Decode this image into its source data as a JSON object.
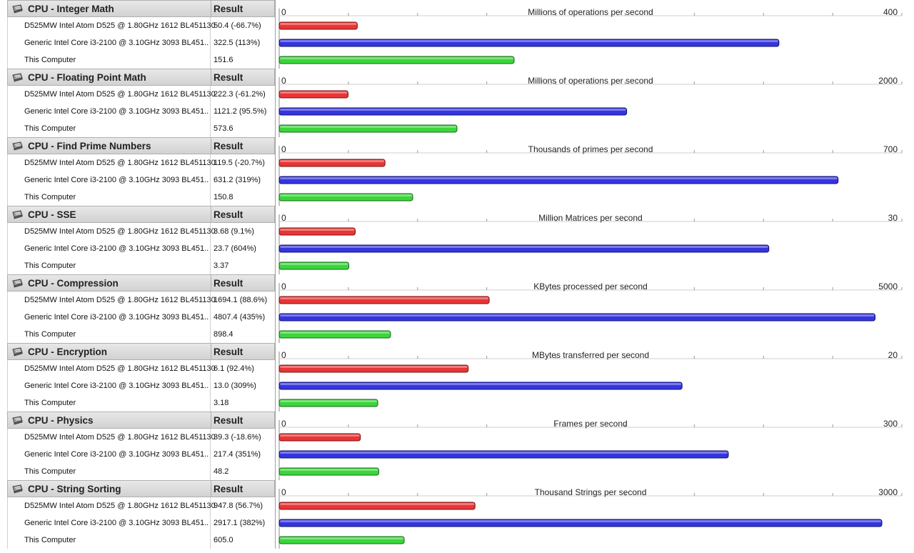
{
  "result_header": "Result",
  "colors": {
    "bar_series": [
      "#e83535",
      "#3535e0",
      "#3ad63a"
    ],
    "bar_border": [
      "#7a1010",
      "#10106a",
      "#166616"
    ],
    "header_bg": "#dadada"
  },
  "sections": [
    {
      "title": "CPU - Integer Math",
      "unit": "Millions of operations per second",
      "axis_min": "0",
      "axis_max_label": "400",
      "axis_max": 400,
      "rows": [
        {
          "name": "D525MW Intel Atom D525 @ 1.80GHz 1612 BL451130",
          "result": "50.4 (-66.7%)",
          "value": 50.4
        },
        {
          "name": "Generic Intel Core i3-2100 @ 3.10GHz 3093 BL451..",
          "result": "322.5 (113%)",
          "value": 322.5
        },
        {
          "name": "This Computer",
          "result": "151.6",
          "value": 151.6
        }
      ]
    },
    {
      "title": "CPU - Floating Point Math",
      "unit": "Millions of operations per second",
      "axis_min": "0",
      "axis_max_label": "2000",
      "axis_max": 2000,
      "rows": [
        {
          "name": "D525MW Intel Atom D525 @ 1.80GHz 1612 BL451130",
          "result": "222.3 (-61.2%)",
          "value": 222.3
        },
        {
          "name": "Generic Intel Core i3-2100 @ 3.10GHz 3093 BL451..",
          "result": "1121.2 (95.5%)",
          "value": 1121.2
        },
        {
          "name": "This Computer",
          "result": "573.6",
          "value": 573.6
        }
      ]
    },
    {
      "title": "CPU - Find Prime Numbers",
      "unit": "Thousands of primes per second",
      "axis_min": "0",
      "axis_max_label": "700",
      "axis_max": 700,
      "rows": [
        {
          "name": "D525MW Intel Atom D525 @ 1.80GHz 1612 BL451130",
          "result": "119.5 (-20.7%)",
          "value": 119.5
        },
        {
          "name": "Generic Intel Core i3-2100 @ 3.10GHz 3093 BL451..",
          "result": "631.2 (319%)",
          "value": 631.2
        },
        {
          "name": "This Computer",
          "result": "150.8",
          "value": 150.8
        }
      ]
    },
    {
      "title": "CPU - SSE",
      "unit": "Million Matrices per second",
      "axis_min": "0",
      "axis_max_label": "30",
      "axis_max": 30,
      "rows": [
        {
          "name": "D525MW Intel Atom D525 @ 1.80GHz 1612 BL451130",
          "result": "3.68 (9.1%)",
          "value": 3.68
        },
        {
          "name": "Generic Intel Core i3-2100 @ 3.10GHz 3093 BL451..",
          "result": "23.7 (604%)",
          "value": 23.7
        },
        {
          "name": "This Computer",
          "result": "3.37",
          "value": 3.37
        }
      ]
    },
    {
      "title": "CPU - Compression",
      "unit": "KBytes processed per second",
      "axis_min": "0",
      "axis_max_label": "5000",
      "axis_max": 5000,
      "rows": [
        {
          "name": "D525MW Intel Atom D525 @ 1.80GHz 1612 BL451130",
          "result": "1694.1 (88.6%)",
          "value": 1694.1
        },
        {
          "name": "Generic Intel Core i3-2100 @ 3.10GHz 3093 BL451..",
          "result": "4807.4 (435%)",
          "value": 4807.4
        },
        {
          "name": "This Computer",
          "result": "898.4",
          "value": 898.4
        }
      ]
    },
    {
      "title": "CPU - Encryption",
      "unit": "MBytes transferred per second",
      "axis_min": "0",
      "axis_max_label": "20",
      "axis_max": 20,
      "rows": [
        {
          "name": "D525MW Intel Atom D525 @ 1.80GHz 1612 BL451130",
          "result": "6.1 (92.4%)",
          "value": 6.1
        },
        {
          "name": "Generic Intel Core i3-2100 @ 3.10GHz 3093 BL451..",
          "result": "13.0 (309%)",
          "value": 13.0
        },
        {
          "name": "This Computer",
          "result": "3.18",
          "value": 3.18
        }
      ]
    },
    {
      "title": "CPU - Physics",
      "unit": "Frames per second",
      "axis_min": "0",
      "axis_max_label": "300",
      "axis_max": 300,
      "rows": [
        {
          "name": "D525MW Intel Atom D525 @ 1.80GHz 1612 BL451130",
          "result": "39.3 (-18.6%)",
          "value": 39.3
        },
        {
          "name": "Generic Intel Core i3-2100 @ 3.10GHz 3093 BL451..",
          "result": "217.4 (351%)",
          "value": 217.4
        },
        {
          "name": "This Computer",
          "result": "48.2",
          "value": 48.2
        }
      ]
    },
    {
      "title": "CPU - String Sorting",
      "unit": "Thousand Strings per second",
      "axis_min": "0",
      "axis_max_label": "3000",
      "axis_max": 3000,
      "rows": [
        {
          "name": "D525MW Intel Atom D525 @ 1.80GHz 1612 BL451130",
          "result": "947.8 (56.7%)",
          "value": 947.8
        },
        {
          "name": "Generic Intel Core i3-2100 @ 3.10GHz 3093 BL451..",
          "result": "2917.1 (382%)",
          "value": 2917.1
        },
        {
          "name": "This Computer",
          "result": "605.0",
          "value": 605.0
        }
      ]
    }
  ],
  "chart_data": [
    {
      "type": "bar",
      "title": "Millions of operations per second",
      "categories": [
        "D525MW Intel Atom D525 @ 1.80GHz 1612 BL451130",
        "Generic Intel Core i3-2100 @ 3.10GHz 3093 BL451..",
        "This Computer"
      ],
      "values": [
        50.4,
        322.5,
        151.6
      ],
      "xlim": [
        0,
        400
      ]
    },
    {
      "type": "bar",
      "title": "Millions of operations per second",
      "categories": [
        "D525MW Intel Atom D525 @ 1.80GHz 1612 BL451130",
        "Generic Intel Core i3-2100 @ 3.10GHz 3093 BL451..",
        "This Computer"
      ],
      "values": [
        222.3,
        1121.2,
        573.6
      ],
      "xlim": [
        0,
        2000
      ]
    },
    {
      "type": "bar",
      "title": "Thousands of primes per second",
      "categories": [
        "D525MW Intel Atom D525 @ 1.80GHz 1612 BL451130",
        "Generic Intel Core i3-2100 @ 3.10GHz 3093 BL451..",
        "This Computer"
      ],
      "values": [
        119.5,
        631.2,
        150.8
      ],
      "xlim": [
        0,
        700
      ]
    },
    {
      "type": "bar",
      "title": "Million Matrices per second",
      "categories": [
        "D525MW Intel Atom D525 @ 1.80GHz 1612 BL451130",
        "Generic Intel Core i3-2100 @ 3.10GHz 3093 BL451..",
        "This Computer"
      ],
      "values": [
        3.68,
        23.7,
        3.37
      ],
      "xlim": [
        0,
        30
      ]
    },
    {
      "type": "bar",
      "title": "KBytes processed per second",
      "categories": [
        "D525MW Intel Atom D525 @ 1.80GHz 1612 BL451130",
        "Generic Intel Core i3-2100 @ 3.10GHz 3093 BL451..",
        "This Computer"
      ],
      "values": [
        1694.1,
        4807.4,
        898.4
      ],
      "xlim": [
        0,
        5000
      ]
    },
    {
      "type": "bar",
      "title": "MBytes transferred per second",
      "categories": [
        "D525MW Intel Atom D525 @ 1.80GHz 1612 BL451130",
        "Generic Intel Core i3-2100 @ 3.10GHz 3093 BL451..",
        "This Computer"
      ],
      "values": [
        6.1,
        13.0,
        3.18
      ],
      "xlim": [
        0,
        20
      ]
    },
    {
      "type": "bar",
      "title": "Frames per second",
      "categories": [
        "D525MW Intel Atom D525 @ 1.80GHz 1612 BL451130",
        "Generic Intel Core i3-2100 @ 3.10GHz 3093 BL451..",
        "This Computer"
      ],
      "values": [
        39.3,
        217.4,
        48.2
      ],
      "xlim": [
        0,
        300
      ]
    },
    {
      "type": "bar",
      "title": "Thousand Strings per second",
      "categories": [
        "D525MW Intel Atom D525 @ 1.80GHz 1612 BL451130",
        "Generic Intel Core i3-2100 @ 3.10GHz 3093 BL451..",
        "This Computer"
      ],
      "values": [
        947.8,
        2917.1,
        605.0
      ],
      "xlim": [
        0,
        3000
      ]
    }
  ]
}
